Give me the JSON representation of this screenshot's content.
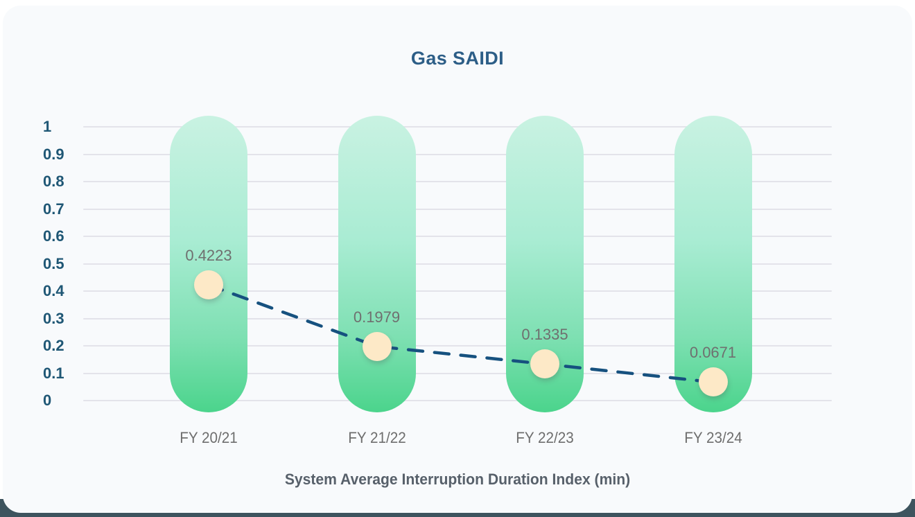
{
  "chart_data": {
    "type": "line",
    "title": "Gas SAIDI",
    "xlabel": "System Average Interruption Duration Index (min)",
    "ylabel": "",
    "categories": [
      "FY 20/21",
      "FY 21/22",
      "FY 22/23",
      "FY 23/24"
    ],
    "values": [
      0.4223,
      0.1979,
      0.1335,
      0.0671
    ],
    "value_labels": [
      "0.4223",
      "0.1979",
      "0.1335",
      "0.0671"
    ],
    "y_ticks": [
      "1",
      "0.9",
      "0.8",
      "0.7",
      "0.6",
      "0.5",
      "0.4",
      "0.3",
      "0.2",
      "0.1",
      "0"
    ],
    "ylim": [
      0,
      1
    ],
    "grid": true,
    "legend": false,
    "marker": "circle",
    "line_style": "dashed",
    "colors": {
      "title": "#2d5e87",
      "y_tick": "#1f5775",
      "grid": "#e3e3ea",
      "bar_top": "#c9f2e2",
      "bar_mid": "#a9ecd3",
      "bar_low": "#7fe0b3",
      "bar_bottom": "#4bd48c",
      "point_fill": "#fde9c7",
      "line": "#16517f",
      "value_label": "#6f6f6f",
      "x_tick": "#6e6e6e",
      "axis_title": "#57606a",
      "card_bg": "#f8fafc",
      "page_bottom": "#3e545e"
    }
  }
}
